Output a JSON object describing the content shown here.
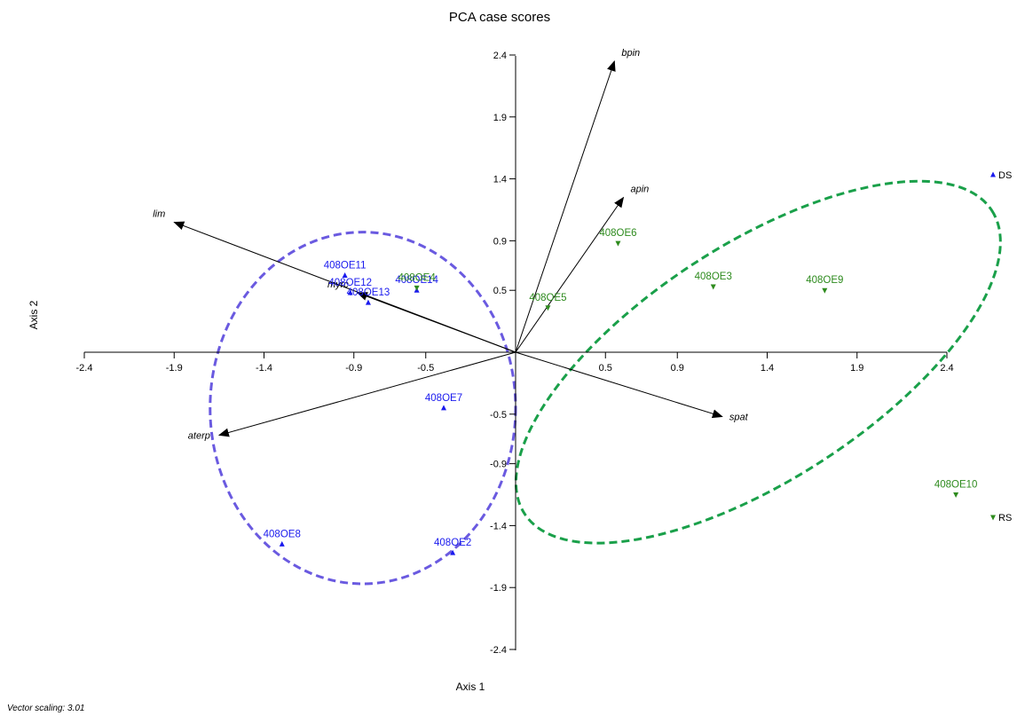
{
  "chart_data": {
    "type": "scatter",
    "subtype": "pca-biplot",
    "title": "PCA case scores",
    "xlabel": "Axis 1",
    "ylabel": "Axis 2",
    "xlim": [
      -2.4,
      2.4
    ],
    "ylim": [
      -2.4,
      2.4
    ],
    "x_ticks": [
      -2.4,
      -1.9,
      -1.4,
      -0.9,
      -0.5,
      0.5,
      0.9,
      1.4,
      1.9,
      2.4
    ],
    "y_ticks": [
      2.4,
      1.9,
      1.4,
      0.9,
      0.5,
      -0.5,
      -0.9,
      -1.4,
      -1.9,
      -2.4
    ],
    "x_tick_labels": [
      "-2.4",
      "-1.9",
      "-1.4",
      "-0.9",
      "-0.5",
      "0.5",
      "0.9",
      "1.4",
      "1.9",
      "2.4"
    ],
    "y_tick_labels": [
      "2.4",
      "1.9",
      "1.4",
      "0.9",
      "0.5",
      "-0.5",
      "-0.9",
      "-1.4",
      "-1.9",
      "-2.4"
    ],
    "footer_note": "Vector scaling: 3.01",
    "groups": [
      {
        "name": "DS",
        "color": "#1a1aee",
        "marker": "triangle-up"
      },
      {
        "name": "RS",
        "color": "#2e8b1e",
        "marker": "triangle-down"
      }
    ],
    "series": [
      {
        "name": "DS",
        "points": [
          {
            "label": "408OE11",
            "x": -0.95,
            "y": 0.62
          },
          {
            "label": "408OE12",
            "x": -0.92,
            "y": 0.48
          },
          {
            "label": "408OE13",
            "x": -0.82,
            "y": 0.4
          },
          {
            "label": "408OE14",
            "x": -0.55,
            "y": 0.5
          },
          {
            "label": "408OE7",
            "x": -0.4,
            "y": -0.45
          },
          {
            "label": "408OE8",
            "x": -1.3,
            "y": -1.55
          },
          {
            "label": "408OE2",
            "x": -0.35,
            "y": -1.62
          }
        ]
      },
      {
        "name": "RS",
        "points": [
          {
            "label": "408OE4",
            "x": -0.55,
            "y": 0.52
          },
          {
            "label": "408OE6",
            "x": 0.57,
            "y": 0.88
          },
          {
            "label": "408OE5",
            "x": 0.18,
            "y": 0.36
          },
          {
            "label": "408OE3",
            "x": 1.1,
            "y": 0.53
          },
          {
            "label": "408OE9",
            "x": 1.72,
            "y": 0.5
          },
          {
            "label": "408OE10",
            "x": 2.45,
            "y": -1.15
          }
        ]
      }
    ],
    "vectors": [
      {
        "label": "bpin",
        "x": 0.55,
        "y": 2.35
      },
      {
        "label": "apin",
        "x": 0.6,
        "y": 1.25
      },
      {
        "label": "lim",
        "x": -1.9,
        "y": 1.05
      },
      {
        "label": "myrc",
        "x": -0.88,
        "y": 0.48
      },
      {
        "label": "aterp",
        "x": -1.65,
        "y": -0.67
      },
      {
        "label": "spat",
        "x": 1.15,
        "y": -0.52
      }
    ],
    "ellipses": [
      {
        "group": "DS",
        "color": "#6a5ae0",
        "cx": -0.85,
        "cy": -0.45,
        "rx": 0.85,
        "ry": 1.42,
        "angle": 0
      },
      {
        "group": "RS",
        "color": "#1aa04a",
        "cx": 1.35,
        "cy": -0.08,
        "rx": 1.55,
        "ry": 0.95,
        "angle": -33
      }
    ],
    "grid": false,
    "legend_position": "right"
  }
}
